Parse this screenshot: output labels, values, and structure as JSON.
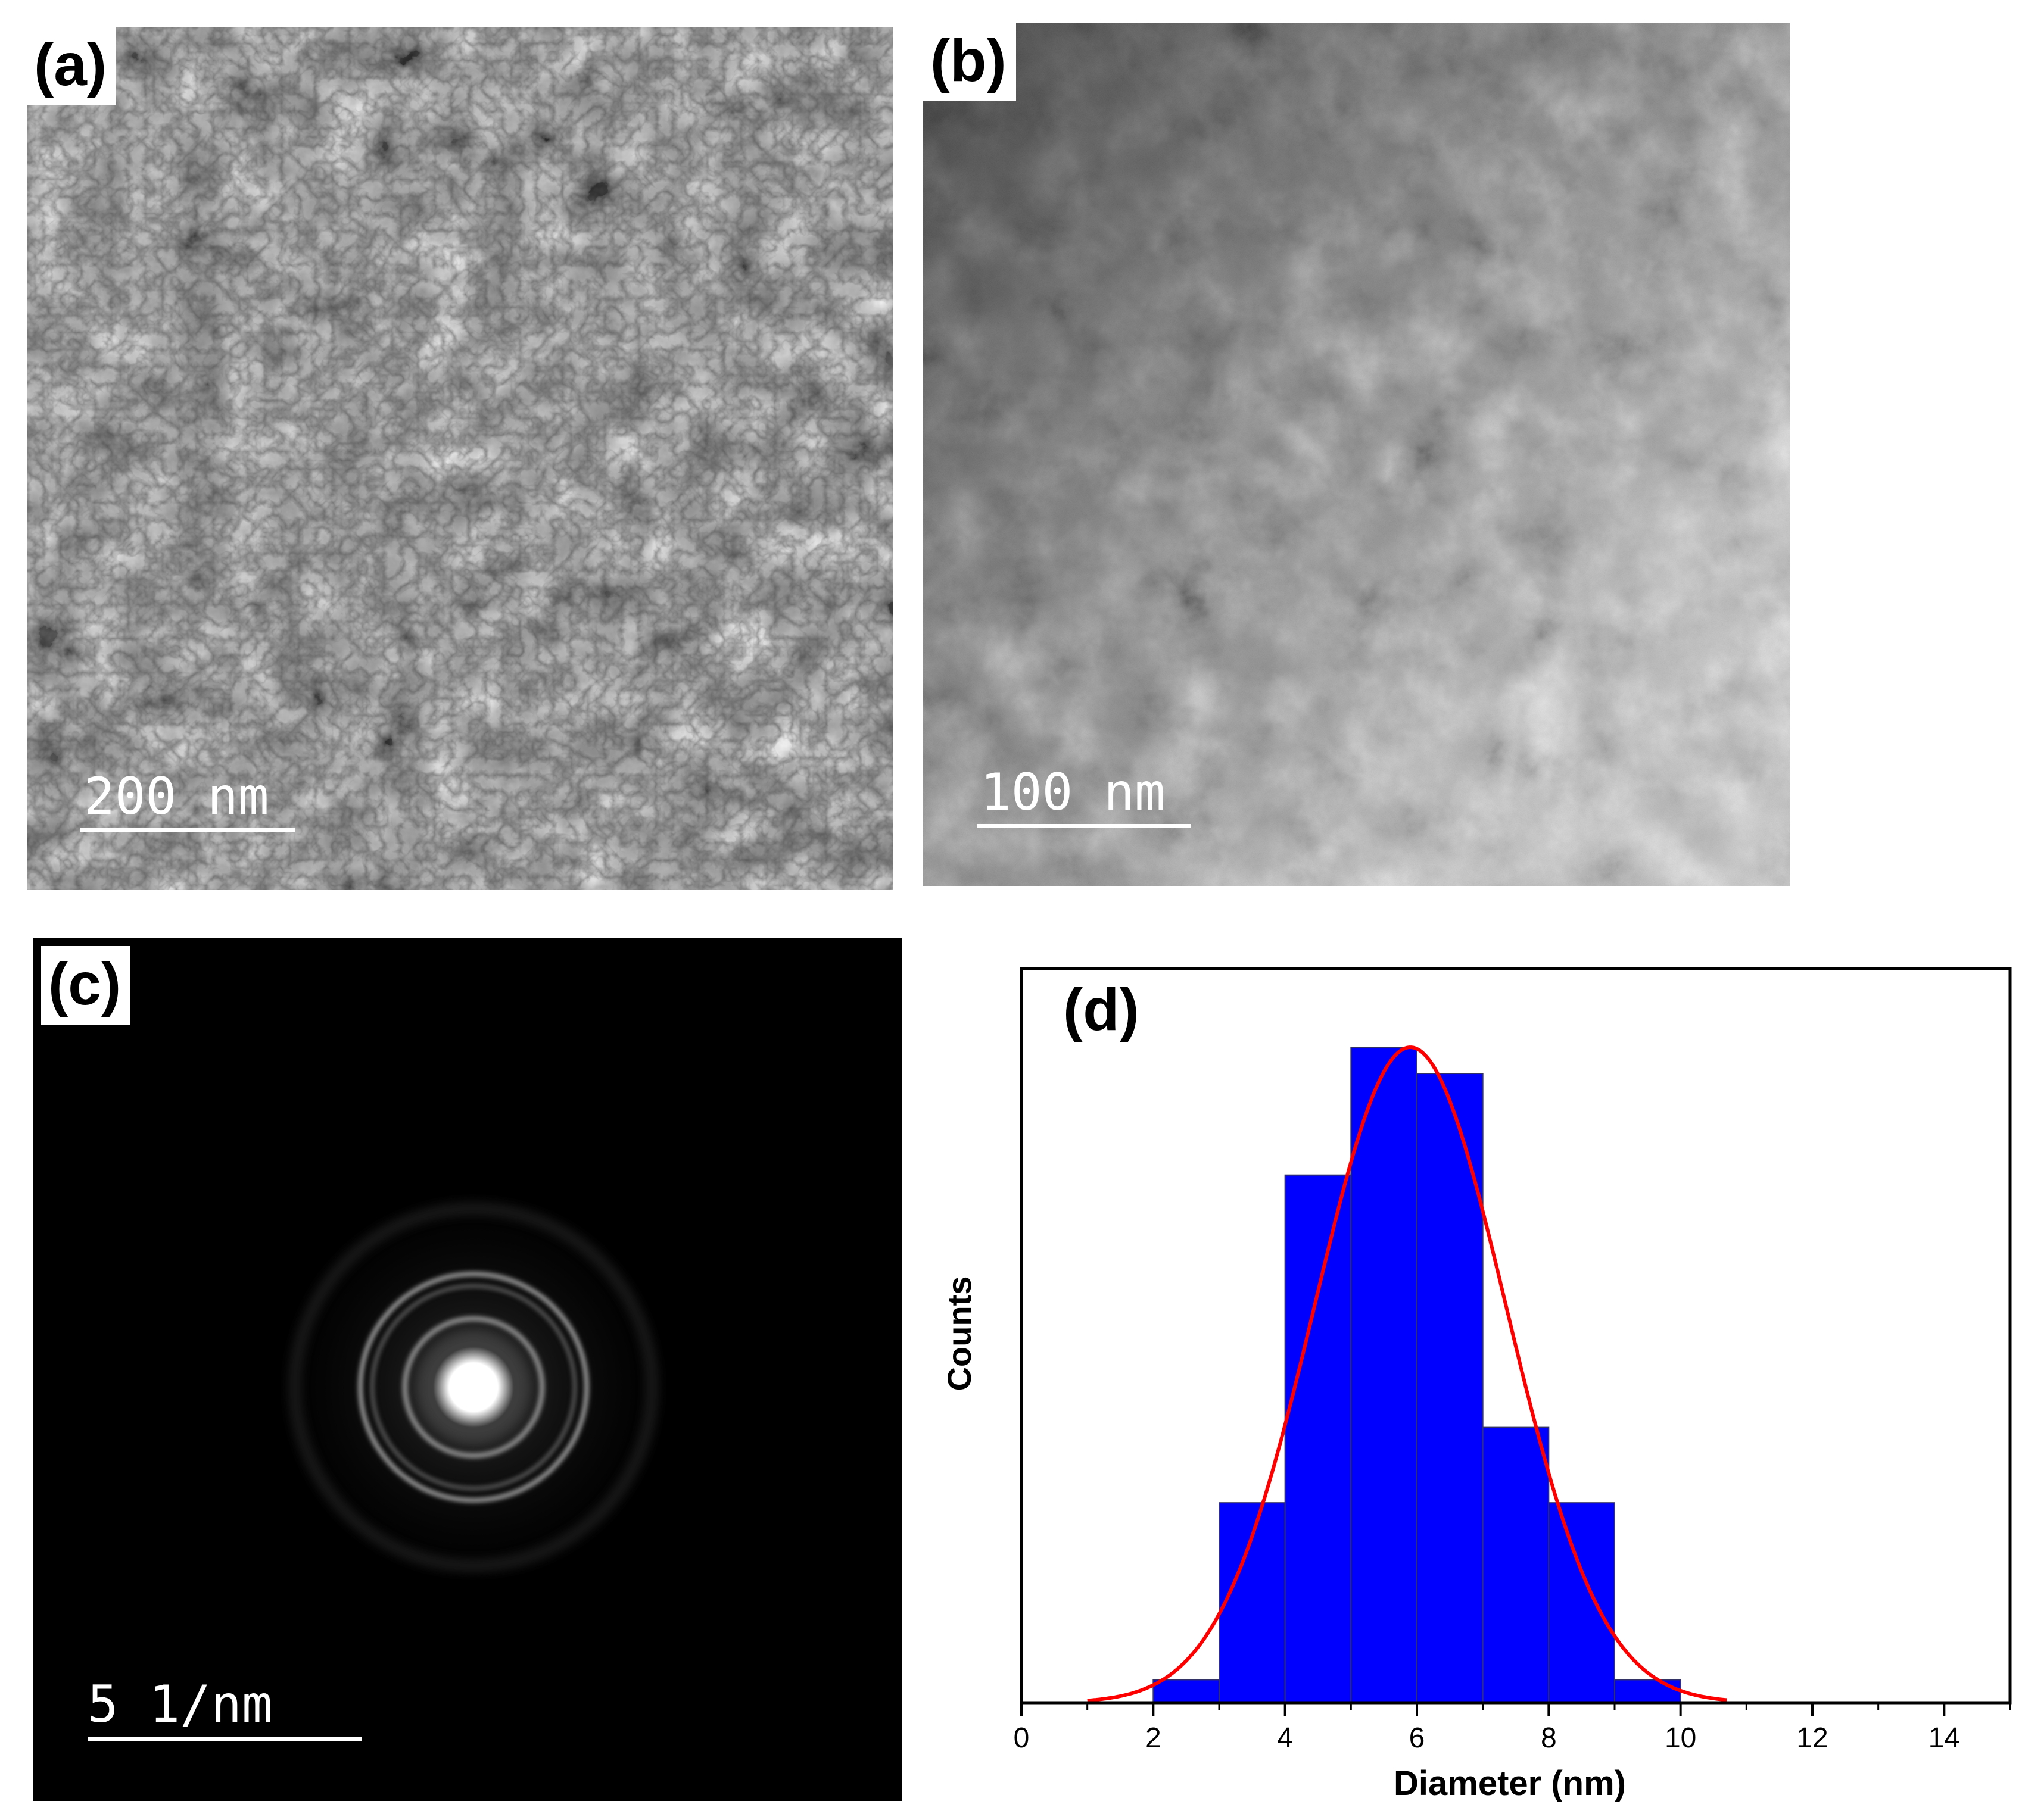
{
  "panels": {
    "a": {
      "label": "(a)",
      "scale_text": "200 nm"
    },
    "b": {
      "label": "(b)",
      "scale_text": "100 nm"
    },
    "c": {
      "label": "(c)",
      "scale_text": "5 1/nm"
    },
    "d": {
      "label": "(d)"
    }
  },
  "colors": {
    "bar_fill": "#0000ff",
    "fit_line": "#ff0000",
    "frame": "#000000"
  },
  "chart_data": {
    "type": "bar",
    "title": "",
    "xlabel": "Diameter (nm)",
    "ylabel": "Counts",
    "xlim": [
      0,
      15
    ],
    "ylim": [
      0,
      1.0
    ],
    "x_ticks": [
      0,
      2,
      4,
      6,
      8,
      10,
      12,
      14
    ],
    "x_tick_labels": [
      "0",
      "2",
      "4",
      "6",
      "8",
      "10",
      "12",
      "14"
    ],
    "y_tick_labels_shown": false,
    "bin_edges": [
      2,
      3,
      4,
      5,
      6,
      7,
      8,
      9,
      10
    ],
    "values": [
      0.035,
      0.305,
      0.805,
      1.0,
      0.96,
      0.42,
      0.305,
      0.035
    ],
    "fit": {
      "type": "gaussian",
      "mean": 5.9,
      "sigma": 1.45,
      "amplitude": 1.0,
      "x_range": [
        1.0,
        10.7
      ]
    }
  }
}
